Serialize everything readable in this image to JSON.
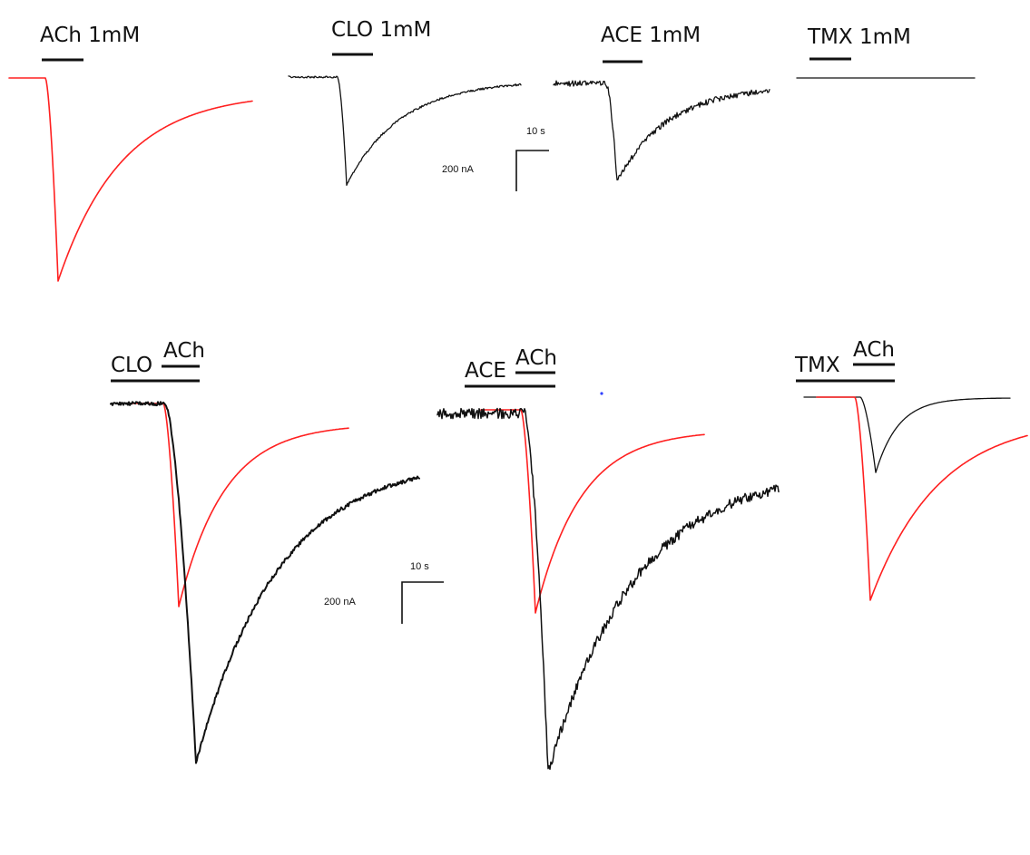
{
  "colors": {
    "ach_trace": "#ff2020",
    "test_trace": "#111111",
    "dot": "#3040ff"
  },
  "chart_data": {
    "type": "line",
    "x_unit": "s",
    "y_unit": "nA",
    "scale_bars": [
      {
        "time_label": "10 s",
        "current_label": "200 nA",
        "time_s": 10,
        "current_nA": 200
      },
      {
        "time_label": "10 s",
        "current_label": "200 nA",
        "time_s": 10,
        "current_nA": 200
      }
    ],
    "top_row": [
      {
        "label": "ACh 1mM",
        "color": "ach_trace",
        "peak_nA": -700,
        "noise_nA": 0
      },
      {
        "label": "CLO 1mM",
        "color": "test_trace",
        "peak_nA": -370,
        "noise_nA": 3
      },
      {
        "label": "ACE 1mM",
        "color": "test_trace",
        "peak_nA": -340,
        "noise_nA": 9
      },
      {
        "label": "TMX 1mM",
        "color": "test_trace",
        "peak_nA": 0,
        "noise_nA": 0
      }
    ],
    "bottom_row": [
      {
        "label_first": "CLO",
        "label_second": "ACh",
        "series": [
          {
            "color": "ach_trace",
            "peak_nA": -700
          },
          {
            "color": "test_trace",
            "peak_nA": -1240,
            "noise_nA": 6
          }
        ]
      },
      {
        "label_first": "ACE",
        "label_second": "ACh",
        "series": [
          {
            "color": "ach_trace",
            "peak_nA": -700
          },
          {
            "color": "test_trace",
            "peak_nA": -1240,
            "noise_nA": 16
          }
        ]
      },
      {
        "label_first": "TMX",
        "label_second": "ACh",
        "series": [
          {
            "color": "test_trace",
            "peak_nA": -260
          },
          {
            "color": "ach_trace",
            "peak_nA": -700
          }
        ]
      }
    ]
  }
}
